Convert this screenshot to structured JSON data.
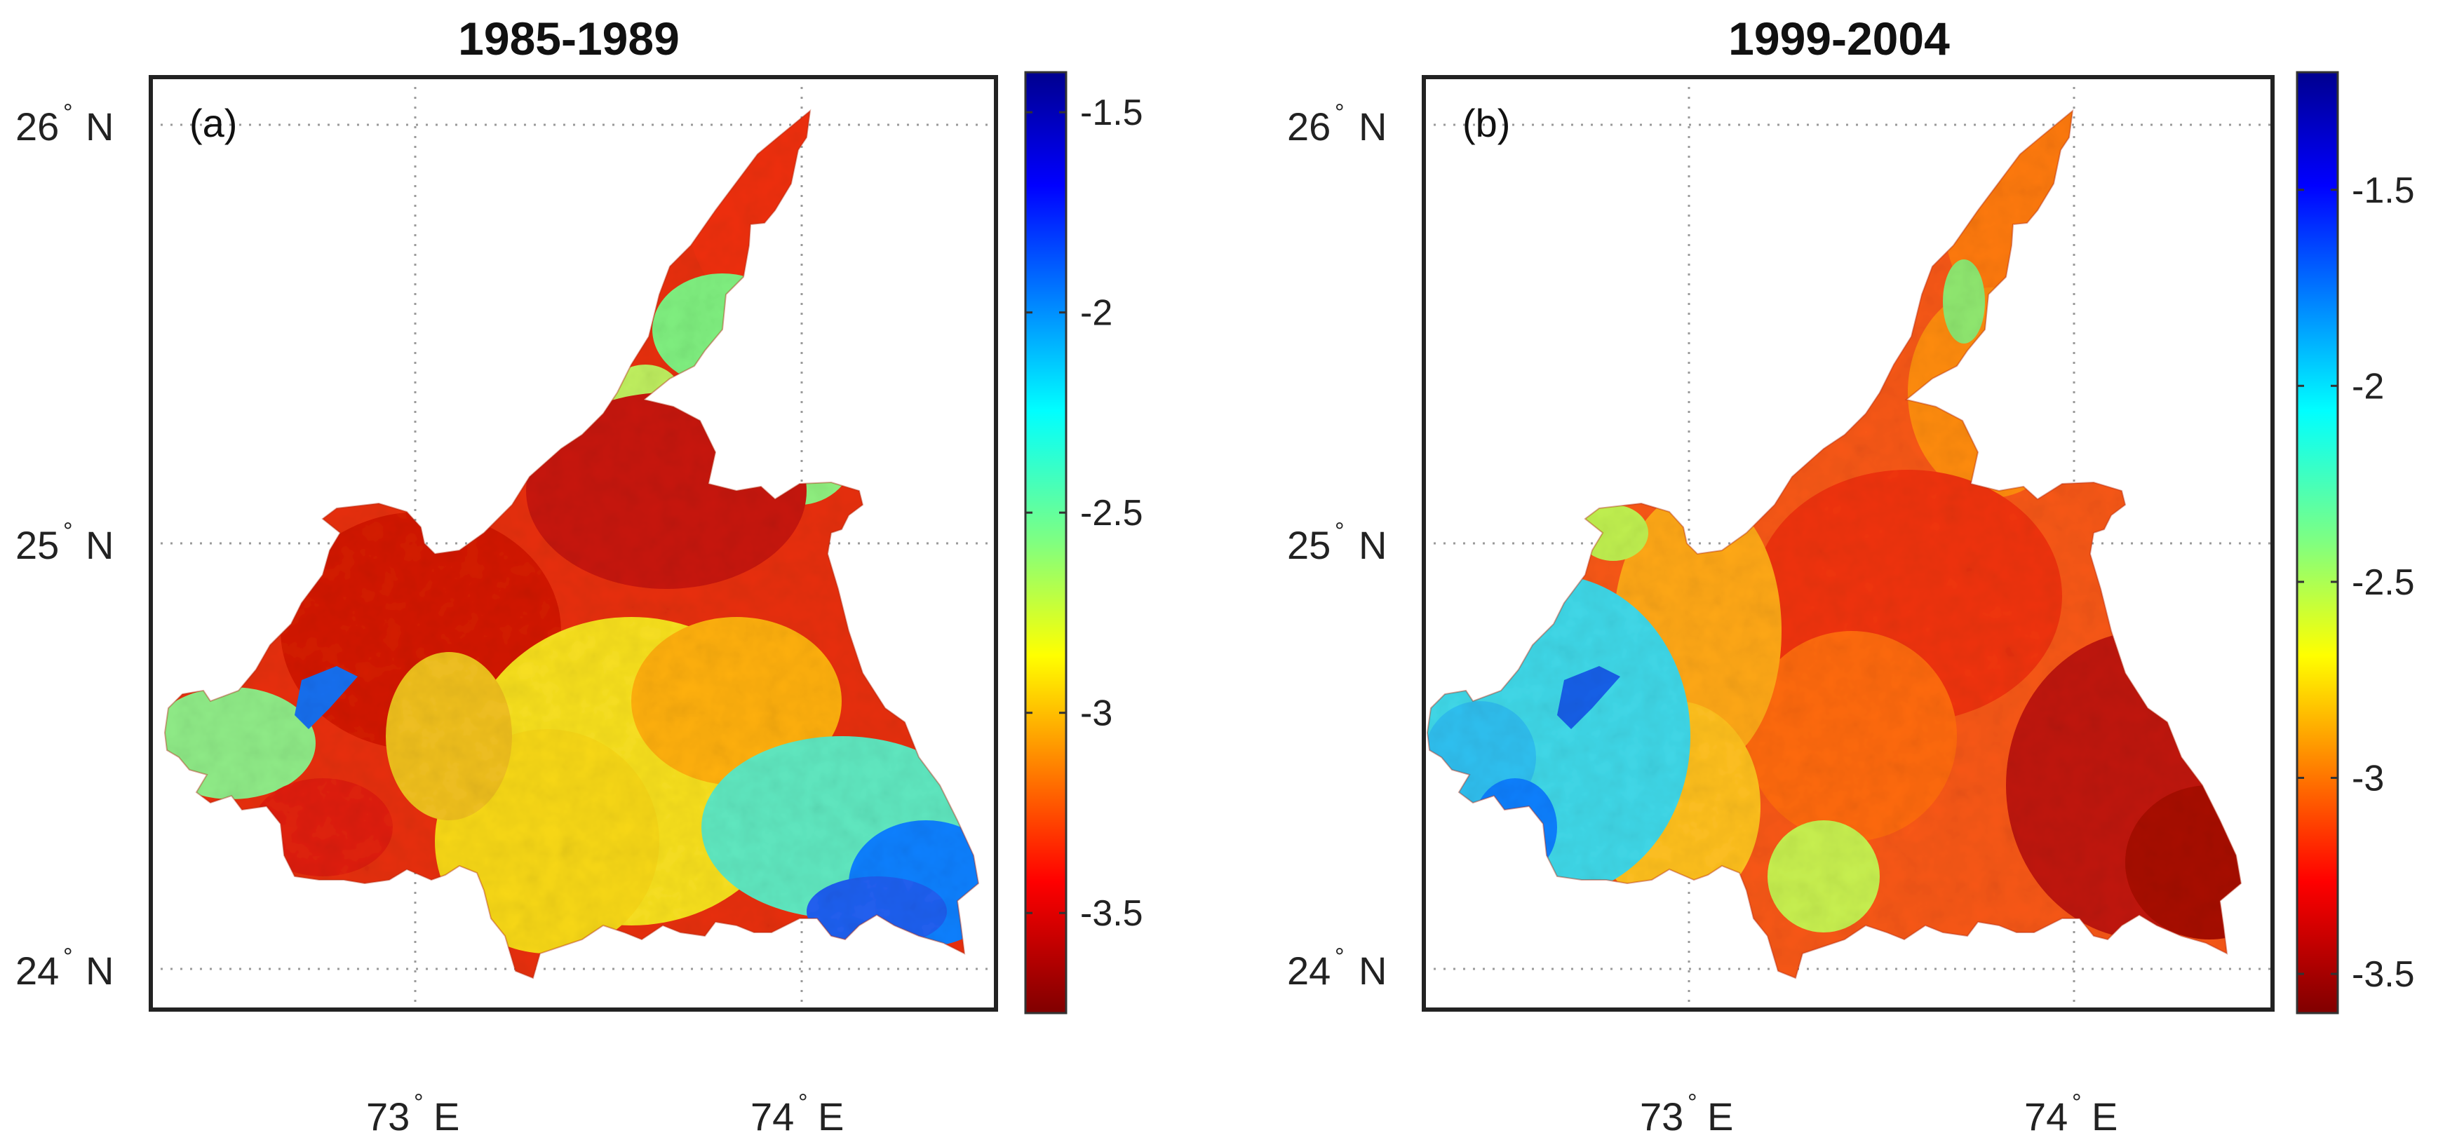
{
  "panels": [
    {
      "title": "1985-1989",
      "tag": "(a)",
      "lat_labels": [
        {
          "deg": "26",
          "hemi": "N"
        },
        {
          "deg": "25",
          "hemi": "N"
        },
        {
          "deg": "24",
          "hemi": "N"
        }
      ],
      "lon_labels": [
        {
          "deg": "73",
          "hemi": "E"
        },
        {
          "deg": "74",
          "hemi": "E"
        }
      ],
      "colorbar": {
        "range": [
          -3.75,
          -1.4
        ],
        "ticks": [
          "-1.5",
          "-2",
          "-2.5",
          "-3",
          "-3.5"
        ],
        "tick_values": [
          -1.5,
          -2,
          -2.5,
          -3,
          -3.5
        ]
      }
    },
    {
      "title": "1999-2004",
      "tag": "(b)",
      "lat_labels": [
        {
          "deg": "26",
          "hemi": "N"
        },
        {
          "deg": "25",
          "hemi": "N"
        },
        {
          "deg": "24",
          "hemi": "N"
        }
      ],
      "lon_labels": [
        {
          "deg": "73",
          "hemi": "E"
        },
        {
          "deg": "74",
          "hemi": "E"
        }
      ],
      "colorbar": {
        "range": [
          -3.6,
          -1.2
        ],
        "ticks": [
          "-1.5",
          "-2",
          "-2.5",
          "-3",
          "-3.5"
        ],
        "tick_values": [
          -1.5,
          -2,
          -2.5,
          -3,
          -3.5
        ]
      }
    }
  ],
  "colormap": "jet"
}
